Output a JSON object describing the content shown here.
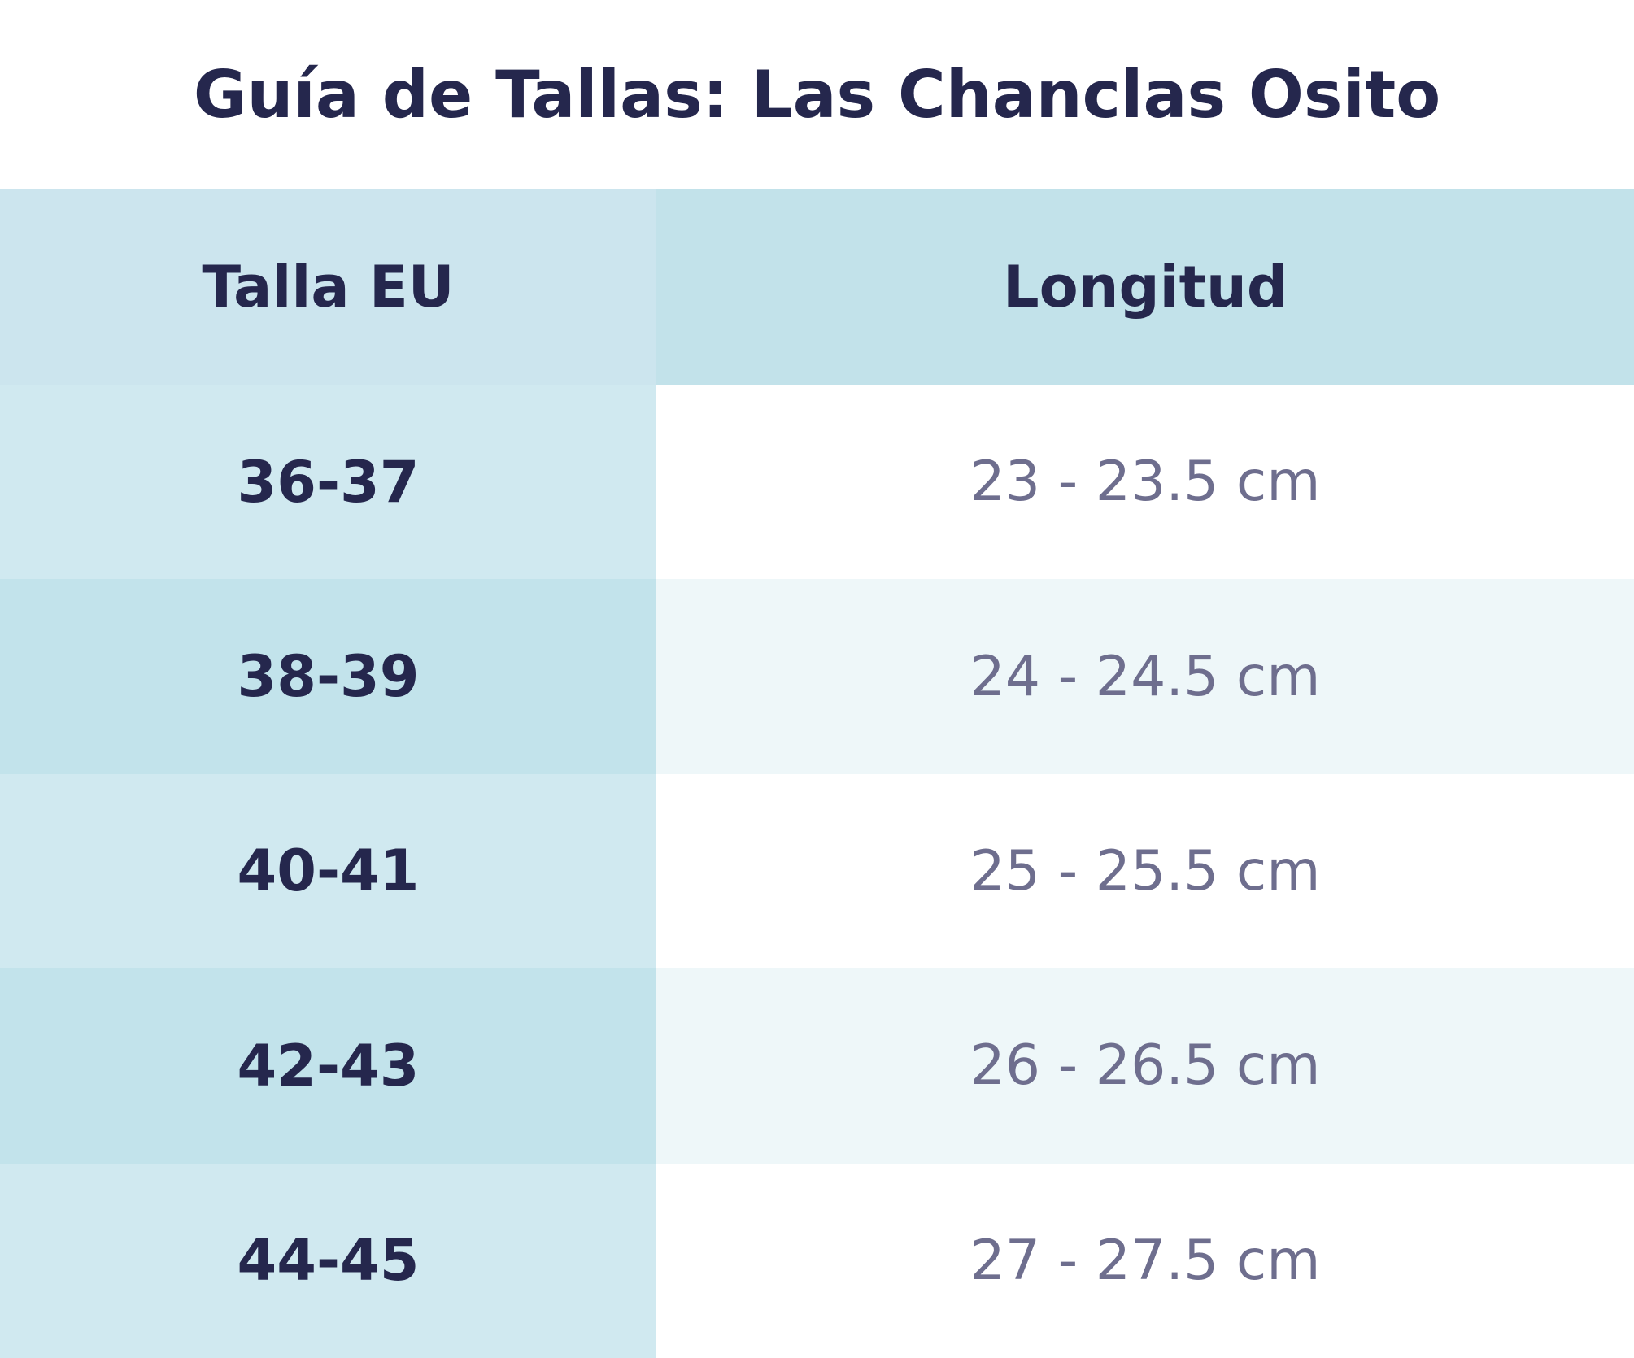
{
  "header": {
    "title": "Guía de Tallas: Las Chanclas Osito"
  },
  "table": {
    "headers": [
      "Talla EU",
      "Longitud"
    ],
    "rows": [
      [
        "36-37",
        "23 - 23.5 cm"
      ],
      [
        "38-39",
        "24 - 24.5 cm"
      ],
      [
        "40-41",
        "25 - 25.5 cm"
      ],
      [
        "42-43",
        "26 - 26.5 cm"
      ],
      [
        "44-45",
        "27 - 27.5 cm"
      ]
    ]
  }
}
